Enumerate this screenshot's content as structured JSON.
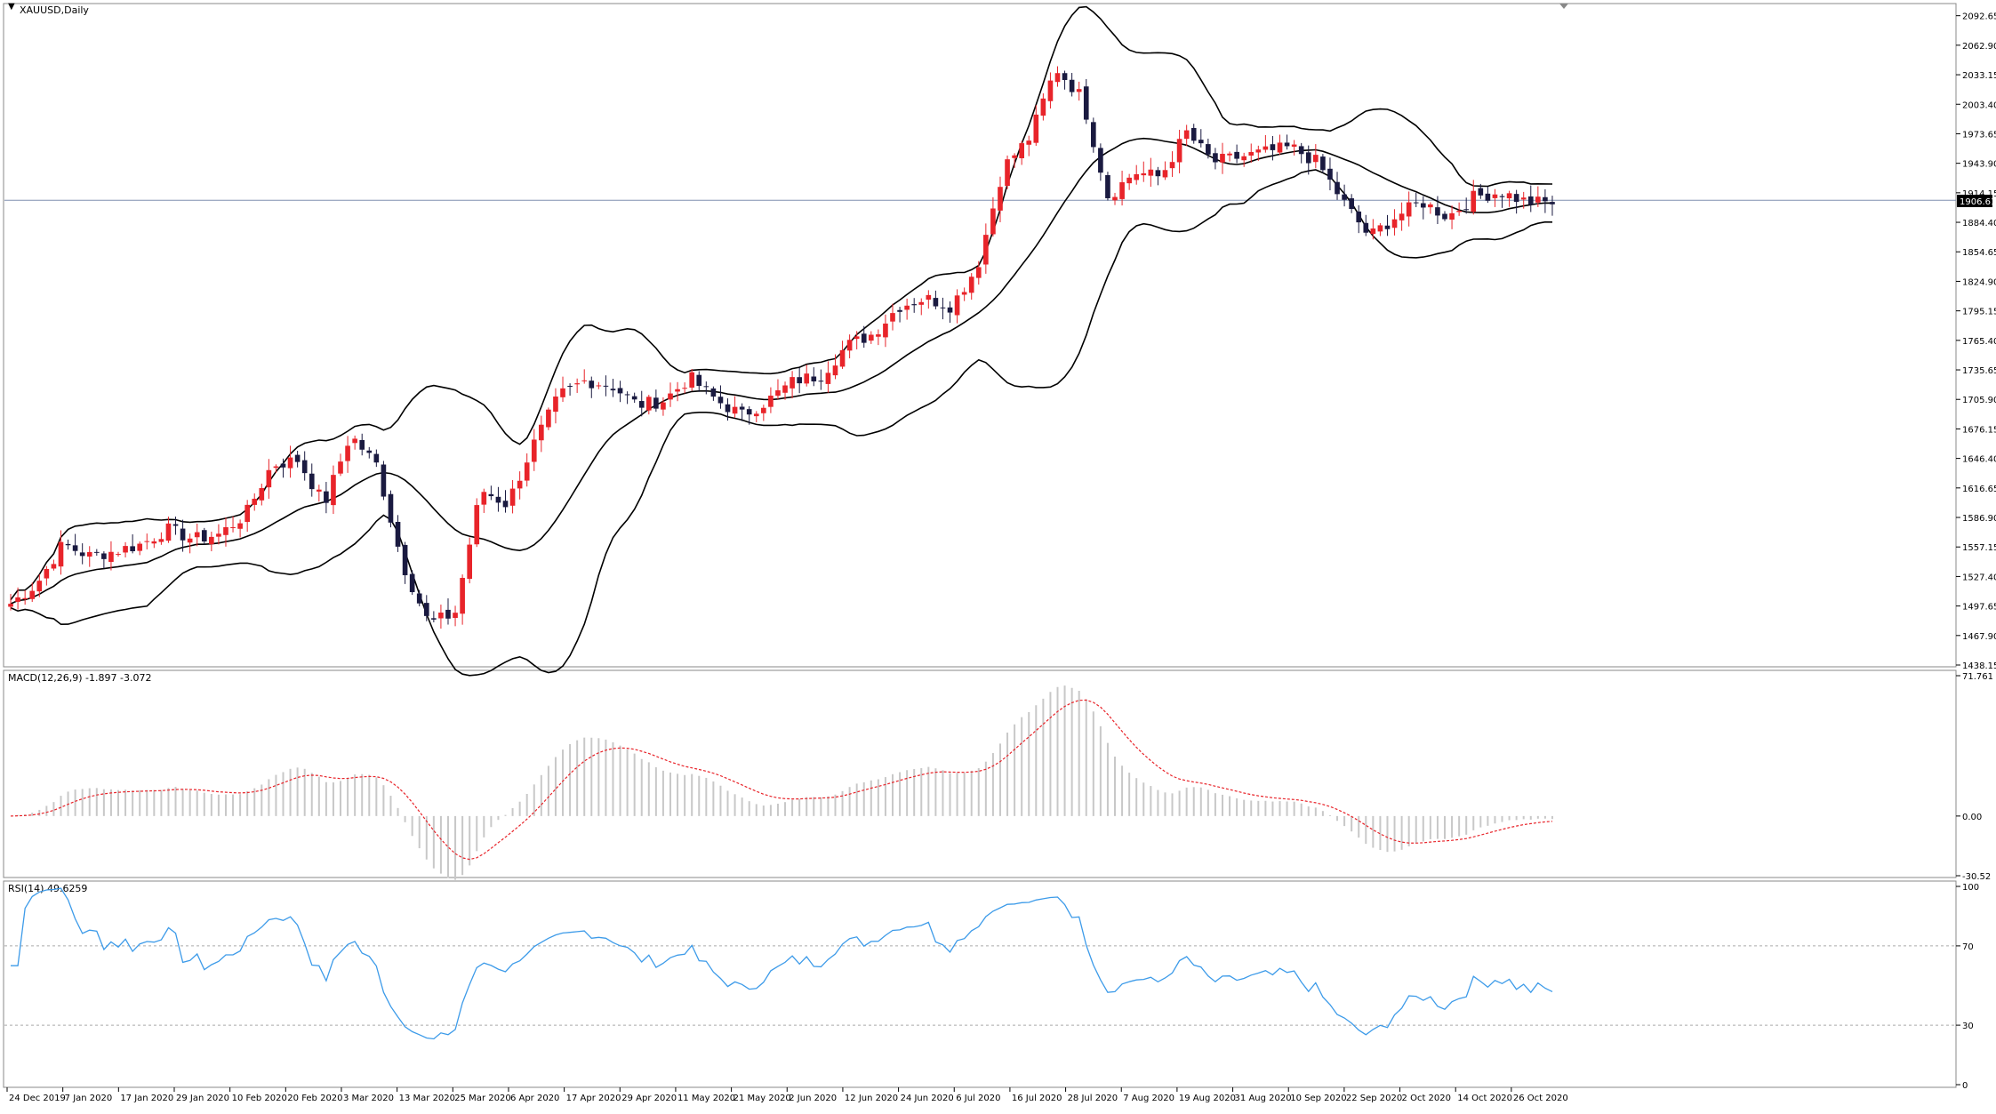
{
  "window": {
    "title": "XAUUSD,Daily"
  },
  "current_price_label": "1906.61",
  "colors": {
    "bull": "#e8242a",
    "bear": "#1a1a40",
    "bands": "#000000",
    "rsi": "#3d9be9",
    "signal": "#e8242a",
    "hist": "#c8c8c8",
    "price_line": "#8090b0"
  },
  "chart_data": [
    {
      "type": "candlestick",
      "name": "XAUUSD,Daily",
      "ylim": [
        1438.15,
        2104.0
      ],
      "yticks": [
        "2092.65",
        "2062.90",
        "2033.15",
        "2003.40",
        "1973.65",
        "1943.90",
        "1914.15",
        "1884.40",
        "1854.65",
        "1824.90",
        "1795.15",
        "1765.40",
        "1735.65",
        "1705.90",
        "1676.15",
        "1646.40",
        "1616.65",
        "1586.90",
        "1557.15",
        "1527.40",
        "1497.65",
        "1467.90",
        "1438.15"
      ],
      "x_labels": [
        "24 Dec 2019",
        "7 Jan 2020",
        "17 Jan 2020",
        "29 Jan 2020",
        "10 Feb 2020",
        "20 Feb 2020",
        "3 Mar 2020",
        "13 Mar 2020",
        "25 Mar 2020",
        "6 Apr 2020",
        "17 Apr 2020",
        "29 Apr 2020",
        "11 May 2020",
        "21 May 2020",
        "2 Jun 2020",
        "12 Jun 2020",
        "24 Jun 2020",
        "6 Jul 2020",
        "16 Jul 2020",
        "28 Jul 2020",
        "7 Aug 2020",
        "19 Aug 2020",
        "31 Aug 2020",
        "10 Sep 2020",
        "22 Sep 2020",
        "2 Oct 2020",
        "14 Oct 2020",
        "26 Oct 2020"
      ],
      "close_anchors": [
        1500,
        1520,
        1560,
        1548,
        1553,
        1560,
        1575,
        1565,
        1570,
        1590,
        1640,
        1645,
        1600,
        1670,
        1640,
        1540,
        1480,
        1490,
        1615,
        1600,
        1660,
        1710,
        1725,
        1720,
        1700,
        1705,
        1728,
        1705,
        1690,
        1705,
        1725,
        1730,
        1760,
        1772,
        1800,
        1808,
        1800,
        1840,
        1940,
        1970,
        2040,
        2010,
        1910,
        1935,
        1930,
        1975,
        1945,
        1950,
        1955,
        1960,
        1945,
        1905,
        1870,
        1890,
        1905,
        1890,
        1910,
        1915,
        1905,
        1904
      ],
      "current_price": 1906.61
    },
    {
      "type": "bar+line",
      "name": "MACD(12,26,9) -1.897 -3.072",
      "ylim": [
        -30.52,
        71.761
      ],
      "yticks": [
        "71.761",
        "0.00",
        "-30.52"
      ]
    },
    {
      "type": "line",
      "name": "RSI(14) 49.6259",
      "ylim": [
        0,
        100
      ],
      "yticks": [
        "100",
        "70",
        "30",
        "0"
      ]
    }
  ]
}
